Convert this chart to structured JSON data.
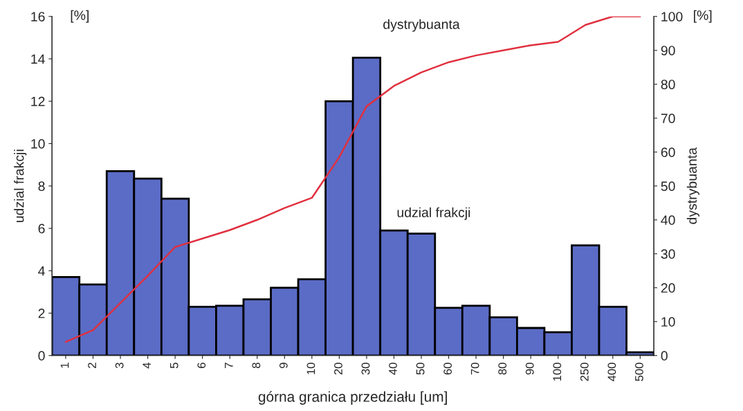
{
  "chart_data": {
    "type": "bar",
    "xlabel": "górna granica przedziału [um]",
    "ylabel": "udzial frakcji",
    "y2label": "dystrybuanta",
    "categories": [
      "1",
      "2",
      "3",
      "4",
      "5",
      "6",
      "7",
      "8",
      "9",
      "10",
      "20",
      "30",
      "40",
      "50",
      "60",
      "70",
      "80",
      "90",
      "100",
      "250",
      "400",
      "500"
    ],
    "series": [
      {
        "name": "udzial frakcji",
        "color": "#5b6cc6",
        "values": [
          3.7,
          3.35,
          8.7,
          8.35,
          7.4,
          2.3,
          2.35,
          2.65,
          3.2,
          3.6,
          12,
          14.05,
          5.9,
          5.75,
          2.25,
          2.35,
          1.8,
          1.3,
          1.1,
          5.2,
          2.3,
          0.15
        ]
      },
      {
        "name": "dystrybuanta",
        "type": "line",
        "axis": "y2",
        "color": "#e0303f",
        "values": [
          4,
          7.5,
          15.5,
          23.5,
          32,
          34.5,
          37,
          40,
          43.5,
          46.5,
          58.5,
          73.5,
          79.5,
          83.5,
          86.5,
          88.5,
          90,
          91.5,
          92.5,
          97.5,
          100,
          100
        ]
      }
    ],
    "ylim": [
      0,
      16
    ],
    "yticks": [
      0,
      2,
      4,
      6,
      8,
      10,
      12,
      14,
      16
    ],
    "y2lim": [
      0,
      100
    ],
    "y2ticks": [
      0,
      10,
      20,
      30,
      40,
      50,
      60,
      70,
      80,
      90,
      100
    ],
    "annotations": [
      "[%]",
      "[%]"
    ],
    "grid": false,
    "legend": false
  }
}
